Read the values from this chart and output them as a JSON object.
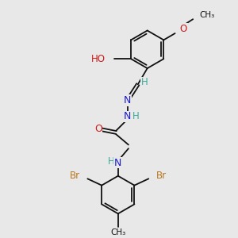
{
  "bg_color": "#e8e8e8",
  "bond_color": "#111111",
  "bond_lw": 1.3,
  "colors": {
    "C": "#111111",
    "H": "#3aaa9a",
    "N": "#1a1acc",
    "O": "#cc1a1a",
    "Br": "#b87820"
  },
  "xlim": [
    0,
    10
  ],
  "ylim": [
    0,
    12
  ],
  "figsize": [
    3.0,
    3.0
  ],
  "dpi": 100
}
